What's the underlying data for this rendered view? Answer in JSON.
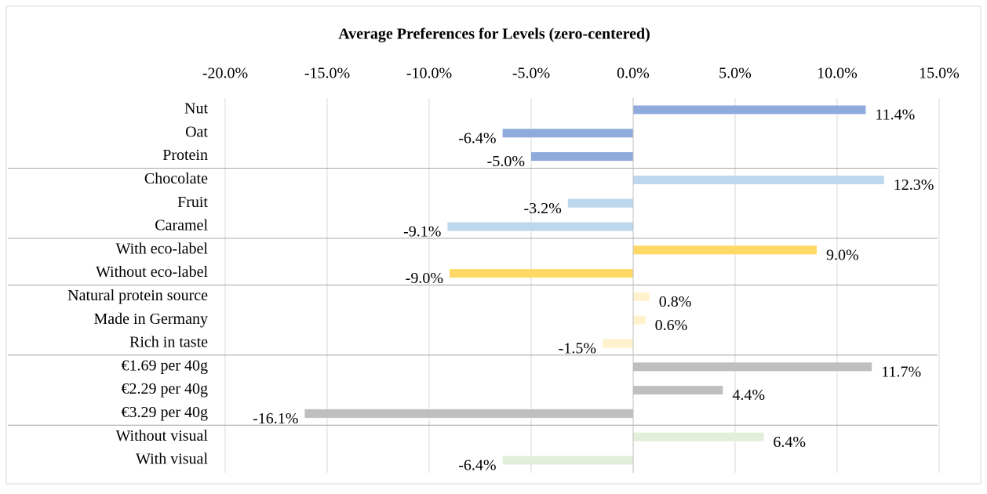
{
  "chart_data": {
    "type": "hbar",
    "title": "Average Preferences for Levels (zero-centered)",
    "categories": [
      "Nut",
      "Oat",
      "Protein",
      "Chocolate",
      "Fruit",
      "Caramel",
      "With eco-label",
      "Without eco-label",
      "Natural protein source",
      "Made in Germany",
      "Rich in taste",
      "€1.69 per 40g",
      "€2.29 per 40g",
      "€3.29 per 40g",
      "Without visual",
      "With visual"
    ],
    "values": [
      11.4,
      -6.4,
      -5.0,
      12.3,
      -3.2,
      -9.1,
      9.0,
      -9.0,
      0.8,
      0.6,
      -1.5,
      11.7,
      4.4,
      -16.1,
      6.4,
      -6.4
    ],
    "value_labels": [
      "11.4%",
      "-6.4%",
      "-5.0%",
      "12.3%",
      "-3.2%",
      "-9.1%",
      "9.0%",
      "-9.0%",
      "0.8%",
      "0.6%",
      "-1.5%",
      "11.7%",
      "4.4%",
      "-16.1%",
      "6.4%",
      "-6.4%"
    ],
    "colors": [
      "#8faadc",
      "#8faadc",
      "#8faadc",
      "#bdd7ee",
      "#bdd7ee",
      "#bdd7ee",
      "#ffd966",
      "#ffd966",
      "#fff2cc",
      "#fff2cc",
      "#fff2cc",
      "#bfbfbf",
      "#bfbfbf",
      "#bfbfbf",
      "#e2efda",
      "#e2efda"
    ],
    "xlim": [
      -20,
      15
    ],
    "xticks": [
      {
        "value": -20,
        "label": "-20.0%"
      },
      {
        "value": -15,
        "label": "-15.0%"
      },
      {
        "value": -10,
        "label": "-10.0%"
      },
      {
        "value": -5,
        "label": "-5.0%"
      },
      {
        "value": 0,
        "label": "0.0%"
      },
      {
        "value": 5,
        "label": "5.0%"
      },
      {
        "value": 10,
        "label": "10.0%"
      },
      {
        "value": 15,
        "label": "15.0%"
      }
    ],
    "grid": true
  }
}
